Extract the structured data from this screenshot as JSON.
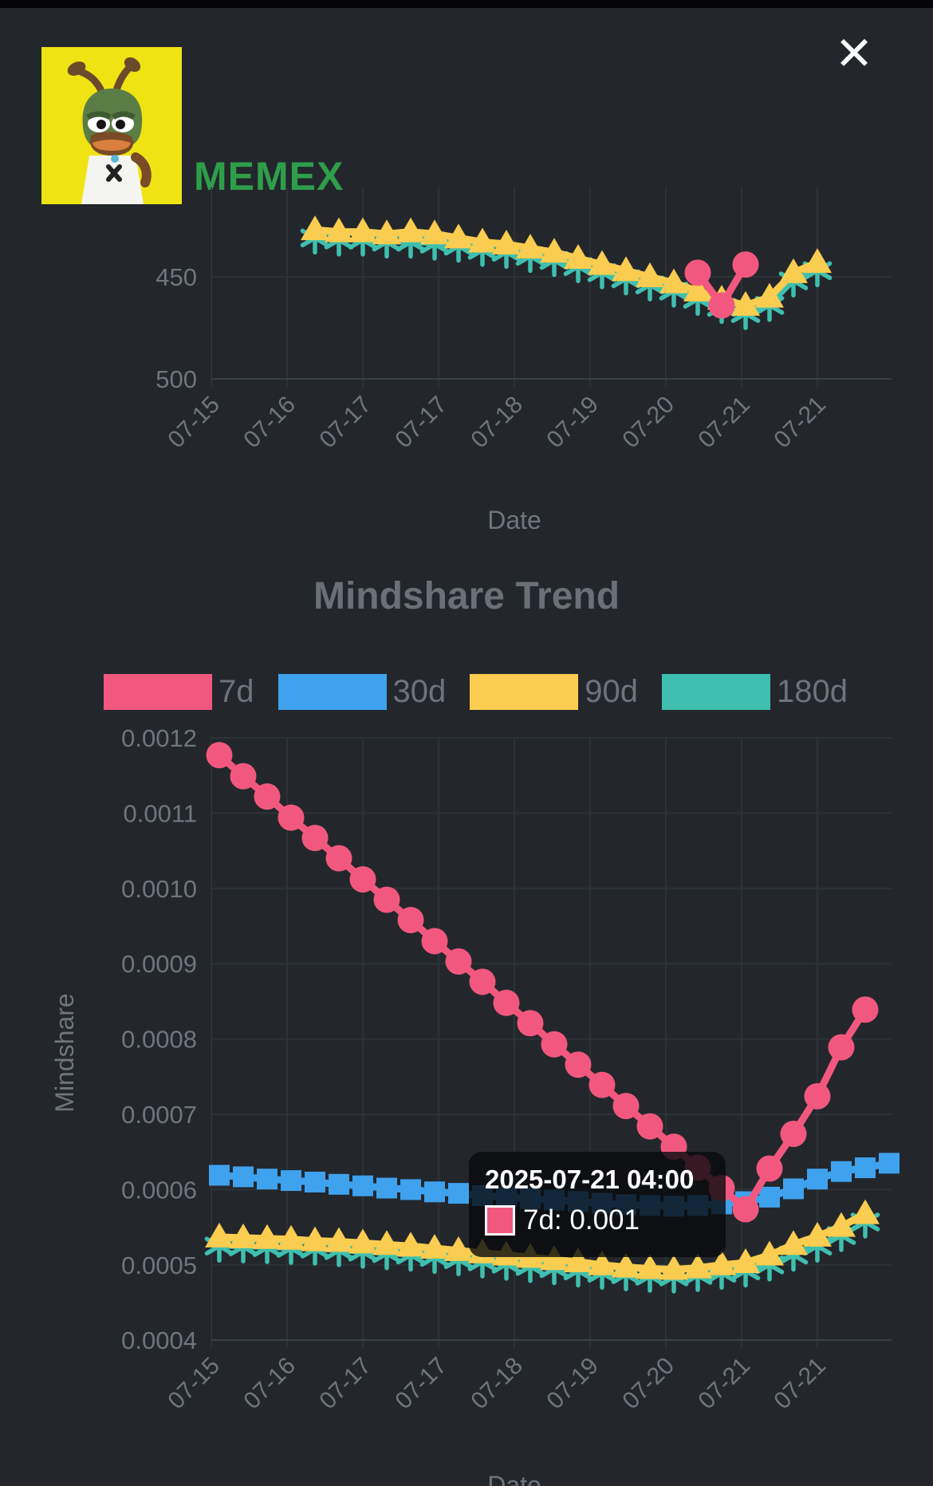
{
  "window": {
    "close_glyph": "✕"
  },
  "header": {
    "title": "MEMEX",
    "avatar": "pepe-frog-avatar",
    "avatar_bg": "#F0E313",
    "title_color": "#2E9E4A"
  },
  "section": {
    "title": "Mindshare Trend"
  },
  "legend": {
    "items": [
      {
        "label": "7d",
        "color": "#F2587F"
      },
      {
        "label": "30d",
        "color": "#3FA2EE"
      },
      {
        "label": "90d",
        "color": "#FACC4F"
      },
      {
        "label": "180d",
        "color": "#3FBFAF"
      }
    ]
  },
  "tooltip": {
    "title": "2025-07-21 04:00",
    "series": "7d",
    "value": "0.001",
    "label": "7d: 0.001",
    "color": "#F2587F"
  },
  "chart_data": [
    {
      "type": "line",
      "title": "",
      "xlabel": "Date",
      "ylabel": "",
      "y_inverted": true,
      "ylim": [
        420,
        510
      ],
      "grid": true,
      "note": "rank trend chart, top portion cut off by scroll",
      "x_tick_labels": [
        "07-15",
        "07-16",
        "07-17",
        "07-17",
        "07-18",
        "07-19",
        "07-20",
        "07-21",
        "07-21"
      ],
      "yticks": [
        {
          "label": "450",
          "value": 450
        },
        {
          "label": "500",
          "value": 500
        }
      ],
      "series": [
        {
          "name": "7d",
          "color": "#F2587F",
          "marker": "circle",
          "start_index": 20,
          "values": [
            448,
            464,
            444
          ]
        },
        {
          "name": "90d",
          "color": "#FACC4F",
          "marker": "triangle",
          "start_index": 4,
          "values": [
            427,
            428,
            428,
            429,
            428,
            429,
            431,
            433,
            434,
            436,
            438,
            441,
            444,
            447,
            450,
            453,
            457,
            461,
            464,
            460,
            448,
            443
          ]
        },
        {
          "name": "180d",
          "color": "#3FBFAF",
          "marker": "asterisk",
          "start_index": 4,
          "values": [
            431,
            432,
            432,
            433,
            433,
            434,
            435,
            437,
            438,
            440,
            442,
            445,
            448,
            451,
            454,
            457,
            461,
            465,
            468,
            464,
            452,
            447
          ]
        }
      ]
    },
    {
      "type": "line",
      "title": "Mindshare Trend",
      "xlabel": "Date",
      "ylabel": "Mindshare",
      "ylim": [
        0.0004,
        0.0012
      ],
      "grid": true,
      "legend_position": "top",
      "x_tick_labels": [
        "07-15",
        "07-16",
        "07-17",
        "07-17",
        "07-18",
        "07-19",
        "07-20",
        "07-21",
        "07-21"
      ],
      "yticks": [
        {
          "label": "0.0012",
          "value": 0.0012
        },
        {
          "label": "0.0011",
          "value": 0.0011
        },
        {
          "label": "0.0010",
          "value": 0.001
        },
        {
          "label": "0.0009",
          "value": 0.0009
        },
        {
          "label": "0.0008",
          "value": 0.0008
        },
        {
          "label": "0.0007",
          "value": 0.0007
        },
        {
          "label": "0.0006",
          "value": 0.0006
        },
        {
          "label": "0.0005",
          "value": 0.0005
        },
        {
          "label": "0.0004",
          "value": 0.0004
        }
      ],
      "series": [
        {
          "name": "7d",
          "color": "#F2587F",
          "marker": "circle",
          "start_index": 0,
          "values": [
            0.001177,
            0.001149,
            0.001122,
            0.001094,
            0.001067,
            0.00104,
            0.001012,
            0.000985,
            0.000958,
            0.00093,
            0.000903,
            0.000876,
            0.000848,
            0.000821,
            0.000793,
            0.000766,
            0.000739,
            0.000711,
            0.000684,
            0.000657,
            0.000629,
            0.000602,
            0.000574,
            0.000628,
            0.000674,
            0.000724,
            0.000789,
            0.000839
          ]
        },
        {
          "name": "30d",
          "color": "#3FA2EE",
          "marker": "square",
          "start_index": 0,
          "values": [
            0.000619,
            0.000617,
            0.000614,
            0.000612,
            0.00061,
            0.000607,
            0.000605,
            0.000602,
            0.0006,
            0.000597,
            0.000595,
            0.000592,
            0.00059,
            0.000588,
            0.000586,
            0.000584,
            0.000582,
            0.00058,
            0.000579,
            0.000578,
            0.000579,
            0.000581,
            0.000584,
            0.00059,
            0.000601,
            0.000614,
            0.000624,
            0.000629,
            0.000635
          ]
        },
        {
          "name": "90d",
          "color": "#FACC4F",
          "marker": "triangle",
          "start_index": 0,
          "values": [
            0.000537,
            0.000536,
            0.000535,
            0.000534,
            0.000532,
            0.000531,
            0.000529,
            0.000527,
            0.000525,
            0.000522,
            0.000519,
            0.000516,
            0.000513,
            0.00051,
            0.000507,
            0.000504,
            0.0005,
            0.000497,
            0.000495,
            0.000494,
            0.000496,
            0.0005,
            0.000503,
            0.000513,
            0.000527,
            0.000538,
            0.000551,
            0.000568
          ]
        },
        {
          "name": "180d",
          "color": "#3FBFAF",
          "marker": "asterisk",
          "start_index": 0,
          "values": [
            0.000525,
            0.000524,
            0.000523,
            0.000522,
            0.000521,
            0.000519,
            0.000517,
            0.000515,
            0.000513,
            0.00051,
            0.000507,
            0.000504,
            0.000501,
            0.000498,
            0.000495,
            0.000492,
            0.000489,
            0.000487,
            0.000485,
            0.000484,
            0.000486,
            0.000489,
            0.000492,
            0.0005,
            0.000513,
            0.000525,
            0.000539,
            0.000557
          ]
        }
      ],
      "highlight_point": {
        "series": "7d",
        "x_index": 22,
        "datetime": "2025-07-21 04:00",
        "displayed_value": "0.001"
      }
    }
  ]
}
